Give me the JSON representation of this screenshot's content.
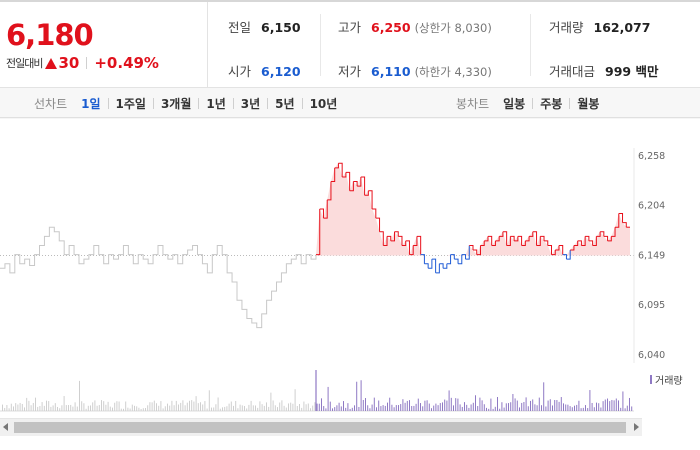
{
  "summary": {
    "price": "6,180",
    "change_label": "전일대비",
    "change_amount": "30",
    "change_rate": "+0.49%",
    "prev_close": {
      "label": "전일",
      "value": "6,150"
    },
    "open": {
      "label": "시가",
      "value": "6,120"
    },
    "high": {
      "label": "고가",
      "value": "6,250",
      "limit": "(상한가 8,030)"
    },
    "low": {
      "label": "저가",
      "value": "6,110",
      "limit": "(하한가 4,330)"
    },
    "volume": {
      "label": "거래량",
      "value": "162,077"
    },
    "amount": {
      "label": "거래대금",
      "value": "999 백만"
    }
  },
  "line_tabs": {
    "title": "선차트",
    "items": [
      "1일",
      "1주일",
      "3개월",
      "1년",
      "3년",
      "5년",
      "10년"
    ],
    "active": 0
  },
  "candle_tabs": {
    "title": "봉차트",
    "items": [
      "일봉",
      "주봉",
      "월봉"
    ]
  },
  "chart_data": {
    "type": "line",
    "y_ticks": [
      "6,258",
      "6,204",
      "6,149",
      "6,095",
      "6,040"
    ],
    "ylim": [
      6040,
      6258
    ],
    "reference_price": 6149,
    "colors": {
      "above": "#e8101b",
      "below": "#1f5bd6",
      "previous_day": "#c8c8c8",
      "fill": "#fbdcdc",
      "volume": "#8f79c4",
      "volume_prev": "#cfcfcf"
    },
    "volume_legend": "거래량",
    "previous_day_values": [
      6135,
      6140,
      6130,
      6150,
      6140,
      6145,
      6138,
      6150,
      6160,
      6170,
      6180,
      6175,
      6165,
      6150,
      6160,
      6150,
      6140,
      6145,
      6150,
      6160,
      6150,
      6140,
      6150,
      6145,
      6150,
      6160,
      6150,
      6140,
      6150,
      6145,
      6140,
      6150,
      6160,
      6150,
      6145,
      6150,
      6140,
      6150,
      6155,
      6160,
      6150,
      6140,
      6130,
      6150,
      6160,
      6150,
      6130,
      6120,
      6100,
      6090,
      6080,
      6075,
      6070,
      6085,
      6100,
      6110,
      6120,
      6130,
      6140,
      6145,
      6150,
      6140,
      6150,
      6145,
      6150
    ],
    "today_values": [
      6150,
      6200,
      6190,
      6210,
      6230,
      6245,
      6250,
      6235,
      6240,
      6220,
      6230,
      6225,
      6235,
      6215,
      6220,
      6200,
      6190,
      6175,
      6160,
      6170,
      6165,
      6175,
      6170,
      6160,
      6165,
      6150,
      6160,
      6170,
      6150,
      6140,
      6135,
      6145,
      6130,
      6140,
      6135,
      6140,
      6150,
      6145,
      6140,
      6150,
      6145,
      6160,
      6155,
      6150,
      6160,
      6165,
      6170,
      6160,
      6165,
      6170,
      6175,
      6160,
      6170,
      6165,
      6170,
      6160,
      6165,
      6170,
      6175,
      6160,
      6170,
      6165,
      6160,
      6150,
      6155,
      6160,
      6150,
      6145,
      6155,
      6160,
      6165,
      6160,
      6170,
      6165,
      6160,
      6170,
      6175,
      6170,
      6165,
      6170,
      6180,
      6195,
      6185,
      6180,
      6180
    ]
  }
}
